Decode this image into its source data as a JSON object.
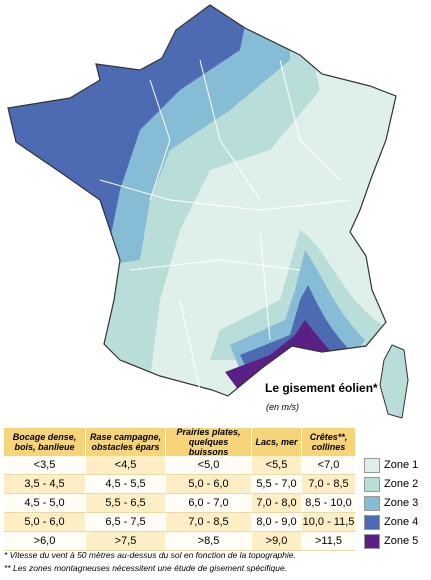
{
  "map": {
    "title": "Le gisement éolien*",
    "unit": "(en m/s)"
  },
  "table": {
    "headers": [
      "Bocage dense, bois, banlieue",
      "Rase campagne, obstacles épars",
      "Prairies plates, quelques buissons",
      "Lacs, mer",
      "Crêtes**, collines"
    ],
    "rows": [
      [
        "<3,5",
        "<4,5",
        "<5,0",
        "<5,5",
        "<7,0"
      ],
      [
        "3,5 - 4,5",
        "4,5 - 5,5",
        "5,0 - 6,0",
        "5,5 - 7,0",
        "7,0 - 8,5"
      ],
      [
        "4,5 - 5,0",
        "5,5 - 6,5",
        "6,0 - 7,0",
        "7,0 - 8,0",
        "8,5 - 10,0"
      ],
      [
        "5,0 - 6,0",
        "6,5 - 7,5",
        "7,0 - 8,5",
        "8,0 - 9,0",
        "10,0 - 11,5"
      ],
      [
        ">6,0",
        ">7,5",
        ">8,5",
        ">9,0",
        ">11,5"
      ]
    ]
  },
  "legend": {
    "zones": [
      "Zone 1",
      "Zone 2",
      "Zone 3",
      "Zone 4",
      "Zone 5"
    ],
    "colors": [
      "#dff0ea",
      "#b9ddd8",
      "#86bcd6",
      "#4d6bb2",
      "#5b2085"
    ]
  },
  "footnotes": [
    "* Vitesse du vent à 50 mètres au-dessus du sol en fonction de la topographie.",
    "** Les zones montagneuses nécessitent une étude de gisement spécifique."
  ]
}
